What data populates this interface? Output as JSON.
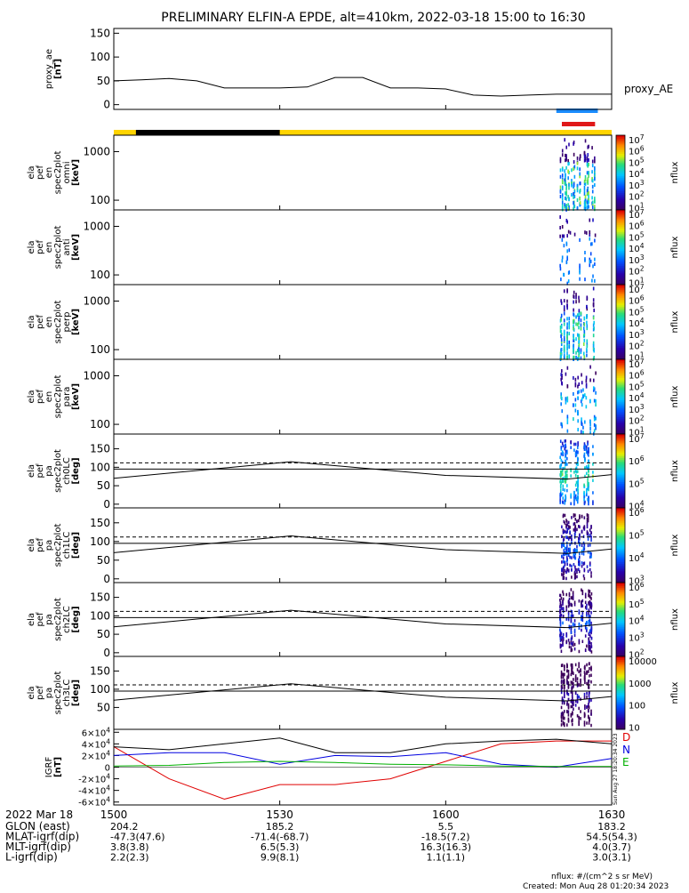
{
  "title": "PRELIMINARY ELFIN-A EPDE, alt=410km, 2022-03-18 15:00 to 16:30",
  "colors": {
    "axis": "#000000",
    "day_bar": "#ffd400",
    "night_bar": "#000000",
    "ae_bar_blue": "#1a8cff",
    "ae_bar_red": "#e01818",
    "igrf_d": "#e00000",
    "igrf_n": "#0000e0",
    "igrf_e": "#00b000",
    "igrf_total": "#000000"
  },
  "panels": [
    {
      "id": "proxy_ae",
      "ylabel": [
        "proxy_ae",
        "[nT]"
      ],
      "ticks": [
        "150",
        "100",
        "50",
        "0"
      ],
      "side_label": "proxy_AE"
    },
    {
      "id": "omni",
      "ylabel": [
        "ela",
        "pef",
        "en",
        "spec2plot",
        "omni",
        "[keV]"
      ],
      "ticks": [
        "1000",
        "100"
      ],
      "cb_ticks": [
        "10^7",
        "10^6",
        "10^5",
        "10^4",
        "10^3",
        "10^2",
        "10^1"
      ],
      "cb_label": "nflux"
    },
    {
      "id": "anti",
      "ylabel": [
        "ela",
        "pef",
        "en",
        "spec2plot",
        "anti",
        "[keV]"
      ],
      "ticks": [
        "1000",
        "100"
      ],
      "cb_ticks": [
        "10^7",
        "10^6",
        "10^5",
        "10^4",
        "10^3",
        "10^2",
        "10^1"
      ],
      "cb_label": "nflux"
    },
    {
      "id": "perp",
      "ylabel": [
        "ela",
        "pef",
        "en",
        "spec2plot",
        "perp",
        "[keV]"
      ],
      "ticks": [
        "1000",
        "100"
      ],
      "cb_ticks": [
        "10^7",
        "10^6",
        "10^5",
        "10^4",
        "10^3",
        "10^2",
        "10^1"
      ],
      "cb_label": "nflux"
    },
    {
      "id": "para",
      "ylabel": [
        "ela",
        "pef",
        "en",
        "spec2plot",
        "para",
        "[keV]"
      ],
      "ticks": [
        "1000",
        "100"
      ],
      "cb_ticks": [
        "10^7",
        "10^6",
        "10^5",
        "10^4",
        "10^3",
        "10^2",
        "10^1"
      ],
      "cb_label": "nflux"
    },
    {
      "id": "ch0LC",
      "ylabel": [
        "ela",
        "pef",
        "pa",
        "spec2plot",
        "ch0LC",
        "[deg]"
      ],
      "ticks": [
        "150",
        "100",
        "50",
        "0"
      ],
      "cb_ticks": [
        "10^7",
        "10^6",
        "10^5",
        "10^4"
      ],
      "cb_label": "nflux"
    },
    {
      "id": "ch1LC",
      "ylabel": [
        "ela",
        "pef",
        "pa",
        "spec2plot",
        "ch1LC",
        "[deg]"
      ],
      "ticks": [
        "150",
        "100",
        "50",
        "0"
      ],
      "cb_ticks": [
        "10^6",
        "10^5",
        "10^4",
        "10^3"
      ],
      "cb_label": "nflux"
    },
    {
      "id": "ch2LC",
      "ylabel": [
        "ela",
        "pef",
        "pa",
        "spec2plot",
        "ch2LC",
        "[deg]"
      ],
      "ticks": [
        "150",
        "100",
        "50",
        "0"
      ],
      "cb_ticks": [
        "10^6",
        "10^5",
        "10^4",
        "10^3",
        "10^2"
      ],
      "cb_label": "nflux"
    },
    {
      "id": "ch3LC",
      "ylabel": [
        "ela",
        "pef",
        "pa",
        "spec2plot",
        "ch3LC",
        "[deg]"
      ],
      "ticks": [
        "150",
        "100",
        "50"
      ],
      "cb_ticks": [
        "10000",
        "1000",
        "100",
        "10"
      ],
      "cb_label": "nflux"
    },
    {
      "id": "igrf",
      "ylabel": [
        "IGRF",
        "[nT]"
      ],
      "ticks": [
        "6×10^4",
        "4×10^4",
        "2×10^4",
        "0",
        "-2×10^4",
        "-4×10^4",
        "-6×10^4"
      ],
      "legend": [
        "D",
        "N",
        "E"
      ],
      "side_note": "Sun Aug 27 18:20:34 2023"
    }
  ],
  "xaxis": {
    "date": "2022 Mar 18",
    "ticks": [
      "1500",
      "1530",
      "1600",
      "1630"
    ],
    "rows": [
      {
        "label": "GLON (east)",
        "values": [
          "204.2",
          "185.2",
          "5.5",
          "183.2"
        ]
      },
      {
        "label": "MLAT-igrf(dip)",
        "values": [
          "-47.3(47.6)",
          "-71.4(-68.7)",
          "-18.5(7.2)",
          "54.5(54.3)"
        ]
      },
      {
        "label": "MLT-igrf(dip)",
        "values": [
          "3.8(3.8)",
          "6.5(5.3)",
          "16.3(16.3)",
          "4.0(3.7)"
        ]
      },
      {
        "label": "L-igrf(dip)",
        "values": [
          "2.2(2.3)",
          "9.9(8.1)",
          "1.1(1.1)",
          "3.0(3.1)"
        ]
      }
    ]
  },
  "footer": {
    "units": "nflux: #/(cm^2 s sr MeV)",
    "created": "Created: Mon Aug 28 01:20:34 2023"
  },
  "chart_data": {
    "type": "line",
    "title": "PRELIMINARY ELFIN-A EPDE, alt=410km, 2022-03-18 15:00 to 16:30",
    "x_unit": "minutes after 15:00",
    "xlim": [
      0,
      90
    ],
    "series": [
      {
        "name": "proxy_AE",
        "x": [
          0,
          5,
          10,
          15,
          20,
          25,
          30,
          35,
          40,
          45,
          50,
          55,
          60,
          65,
          70,
          75,
          80,
          85,
          90
        ],
        "values": [
          50,
          52,
          55,
          50,
          35,
          35,
          35,
          37,
          57,
          57,
          35,
          35,
          33,
          20,
          18,
          20,
          22,
          22,
          22
        ],
        "ylim": [
          0,
          150
        ]
      },
      {
        "name": "D",
        "x": [
          0,
          10,
          20,
          30,
          40,
          50,
          60,
          70,
          80,
          90
        ],
        "values": [
          35000,
          -20000,
          -55000,
          -30000,
          -30000,
          -20000,
          10000,
          40000,
          45000,
          45000
        ],
        "ylim": [
          -60000,
          60000
        ]
      },
      {
        "name": "N",
        "x": [
          0,
          10,
          20,
          30,
          40,
          50,
          60,
          70,
          80,
          90
        ],
        "values": [
          20000,
          25000,
          25000,
          5000,
          20000,
          18000,
          25000,
          5000,
          0,
          15000
        ],
        "ylim": [
          -60000,
          60000
        ]
      },
      {
        "name": "E",
        "x": [
          0,
          10,
          20,
          30,
          40,
          50,
          60,
          70,
          80,
          90
        ],
        "values": [
          2000,
          3000,
          8000,
          10000,
          8000,
          5000,
          4000,
          2000,
          1000,
          1000
        ],
        "ylim": [
          -60000,
          60000
        ]
      },
      {
        "name": "total",
        "x": [
          0,
          10,
          20,
          30,
          40,
          50,
          60,
          70,
          80,
          90
        ],
        "values": [
          35000,
          30000,
          40000,
          50000,
          25000,
          25000,
          40000,
          45000,
          48000,
          40000
        ],
        "ylim": [
          -60000,
          60000
        ]
      }
    ]
  }
}
